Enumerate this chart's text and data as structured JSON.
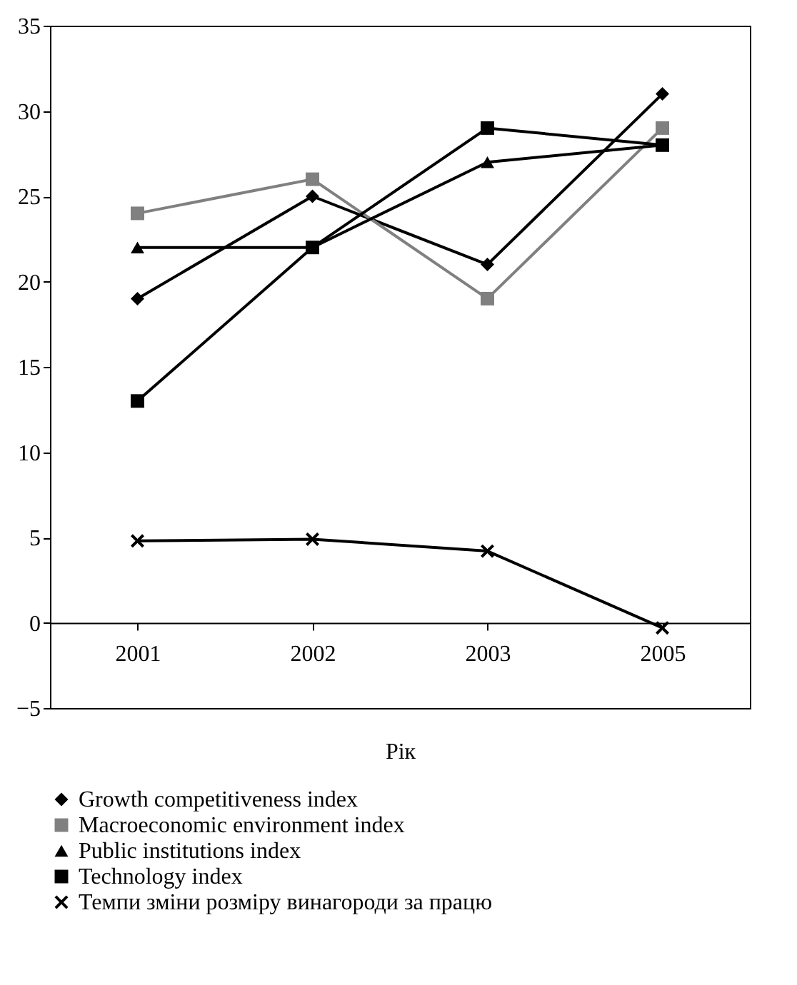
{
  "chart_data": {
    "type": "line",
    "xlabel": "Рік",
    "categories": [
      "2001",
      "2002",
      "2003",
      "2005"
    ],
    "series": [
      {
        "name": "Growth competitiveness index",
        "color": "#000000",
        "marker": "diamond",
        "values": [
          19,
          25,
          21,
          31
        ]
      },
      {
        "name": "Macroeconomic environment index",
        "color": "#808080",
        "marker": "square",
        "values": [
          24,
          26,
          19,
          29
        ]
      },
      {
        "name": "Public institutions index",
        "color": "#000000",
        "marker": "triangle",
        "values": [
          22,
          22,
          27,
          28
        ]
      },
      {
        "name": "Technology index",
        "color": "#000000",
        "marker": "square",
        "values": [
          13,
          22,
          29,
          28
        ]
      },
      {
        "name": "Темпи зміни розміру винагороди за працю",
        "color": "#000000",
        "marker": "cross",
        "values": [
          4.8,
          4.9,
          4.2,
          -0.3
        ]
      }
    ],
    "ylim": [
      -5,
      35
    ],
    "yticks": [
      {
        "value": -5,
        "label": "−5"
      },
      0,
      5,
      10,
      15,
      20,
      25,
      30,
      35
    ],
    "grid": false,
    "legend": "bottom",
    "line_style": "solid"
  }
}
